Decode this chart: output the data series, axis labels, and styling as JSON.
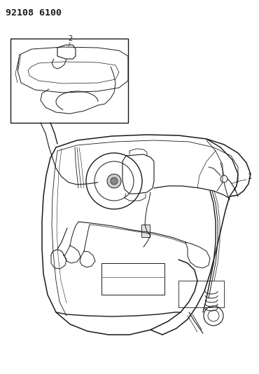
{
  "title_code": "92108 6100",
  "bg_color": "#ffffff",
  "line_color": "#1a1a1a",
  "title_fontsize": 9.5,
  "fig_width": 3.7,
  "fig_height": 5.33,
  "dpi": 100,
  "label_1": "1",
  "label_2": "2"
}
